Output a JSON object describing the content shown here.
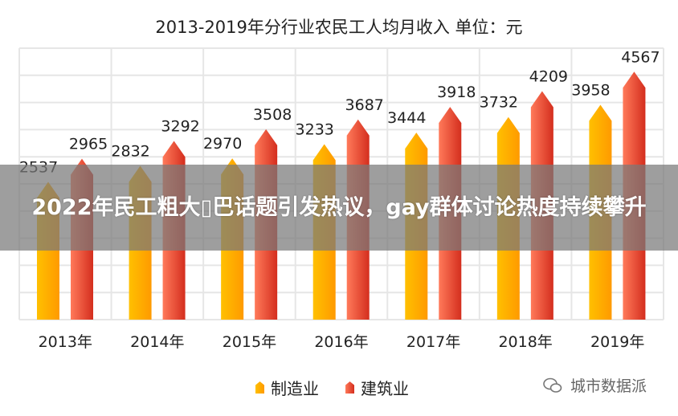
{
  "chart_data": {
    "type": "bar",
    "title": "2013-2019年分行业农民工人均月收入 单位：元",
    "categories": [
      "2013年",
      "2014年",
      "2015年",
      "2016年",
      "2017年",
      "2018年",
      "2019年"
    ],
    "series": [
      {
        "name": "制造业",
        "values": [
          2537,
          2832,
          2970,
          3233,
          3444,
          3732,
          3958
        ],
        "color": "#FFA500"
      },
      {
        "name": "建筑业",
        "values": [
          2965,
          3292,
          3508,
          3687,
          3918,
          4209,
          4567
        ],
        "color": "#E8402A"
      }
    ],
    "ylim": [
      0,
      5000
    ],
    "grid": true,
    "legend": "bottom"
  },
  "banner": {
    "text": "2022年民工粗大▯巴话题引发热议，gay群体讨论热度持续攀升"
  },
  "watermark": {
    "text": "城市数据派",
    "icon": "wechat-icon"
  }
}
